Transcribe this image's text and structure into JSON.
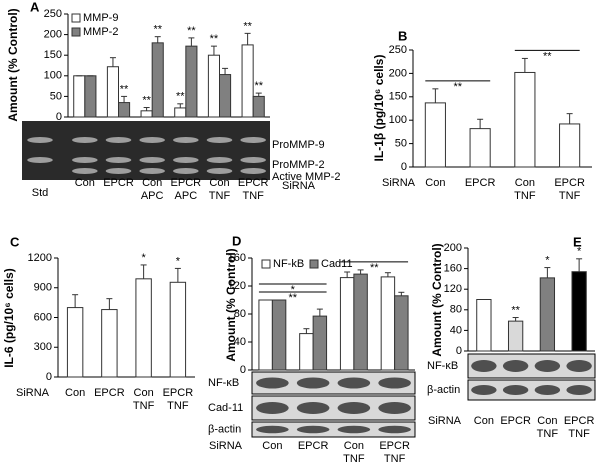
{
  "chart_data": [
    {
      "type": "bar",
      "label": "A",
      "ylabel": "Amount (% Control)",
      "categories": [
        "Con",
        "EPCR",
        "Con APC",
        "EPCR APC",
        "Con TNF",
        "EPCR TNF"
      ],
      "series": [
        {
          "name": "MMP-9",
          "color": "#ffffff",
          "values": [
            100,
            122,
            15,
            22,
            150,
            175
          ],
          "errors": [
            0,
            22,
            8,
            10,
            22,
            28
          ],
          "significance": [
            null,
            null,
            "**",
            "**",
            "**",
            "**"
          ]
        },
        {
          "name": "MMP-2",
          "color": "#808080",
          "values": [
            100,
            35,
            180,
            172,
            103,
            50
          ],
          "errors": [
            0,
            15,
            15,
            20,
            15,
            8
          ],
          "significance": [
            null,
            "**",
            "**",
            "**",
            null,
            "**"
          ]
        }
      ],
      "ylim": [
        0,
        250
      ],
      "yticks": [
        0,
        50,
        100,
        150,
        200,
        250
      ],
      "legend": "upper left",
      "blot_labels": [
        "ProMMP-9",
        "ProMMP-2",
        "Active MMP-2"
      ],
      "marker_label": "Std",
      "row_label": "SiRNA"
    },
    {
      "type": "bar",
      "label": "B",
      "ylabel": "IL-1β  (pg/10⁶ cells)",
      "categories": [
        "Con",
        "EPCR",
        "Con TNF",
        "EPCR TNF"
      ],
      "series": [
        {
          "color": "#ffffff",
          "values": [
            137,
            82,
            202,
            92
          ],
          "errors": [
            30,
            20,
            30,
            22
          ]
        }
      ],
      "comparisons": [
        {
          "pair": [
            0,
            1
          ],
          "text": "**"
        },
        {
          "pair": [
            2,
            3
          ],
          "text": "**"
        }
      ],
      "ylim": [
        0,
        250
      ],
      "yticks": [
        0,
        50,
        100,
        150,
        200,
        250
      ],
      "row_label": "SiRNA"
    },
    {
      "type": "bar",
      "label": "C",
      "ylabel": "IL-6  (pg/10⁶ cells)",
      "categories": [
        "Con",
        "EPCR",
        "Con TNF",
        "EPCR TNF"
      ],
      "series": [
        {
          "color": "#ffffff",
          "values": [
            700,
            680,
            990,
            955
          ],
          "errors": [
            130,
            110,
            140,
            140
          ],
          "significance": [
            null,
            null,
            "*",
            "*"
          ]
        }
      ],
      "ylim": [
        0,
        1200
      ],
      "yticks": [
        0,
        300,
        600,
        900,
        1200
      ],
      "row_label": "SiRNA"
    },
    {
      "type": "bar",
      "label": "D",
      "ylabel": "Amount (% Control)",
      "categories": [
        "Con",
        "EPCR",
        "Con TNF",
        "EPCR TNF"
      ],
      "series": [
        {
          "name": "NF-kB",
          "color": "#ffffff",
          "values": [
            100,
            52,
            132,
            133
          ],
          "errors": [
            0,
            7,
            8,
            6
          ]
        },
        {
          "name": "Cad11",
          "color": "#808080",
          "values": [
            100,
            77,
            137,
            106
          ],
          "errors": [
            0,
            10,
            6,
            5
          ]
        }
      ],
      "comparisons": [
        {
          "pair": [
            0,
            1
          ],
          "text": "**"
        },
        {
          "pair": [
            0,
            1
          ],
          "text": "*"
        },
        {
          "pair": [
            2,
            3
          ],
          "text": "**"
        }
      ],
      "ylim": [
        0,
        160
      ],
      "yticks": [
        0,
        40,
        80,
        120,
        160
      ],
      "legend": "upper left",
      "blot_labels": [
        "NF-κB",
        "Cad-11",
        "β-actin"
      ],
      "row_label": "SiRNA"
    },
    {
      "type": "bar",
      "label": "E",
      "ylabel": "Amount (% Control)",
      "categories": [
        "Con",
        "EPCR",
        "Con TNF",
        "EPCR TNF"
      ],
      "series": [
        {
          "colors": [
            "#ffffff",
            "#d9d9d9",
            "#808080",
            "#000000"
          ],
          "values": [
            100,
            58,
            142,
            154
          ],
          "errors": [
            0,
            7,
            20,
            25
          ],
          "significance": [
            null,
            "**",
            "*",
            "*"
          ]
        }
      ],
      "ylim": [
        0,
        200
      ],
      "yticks": [
        0,
        40,
        80,
        120,
        160,
        200
      ],
      "blot_labels": [
        "NF-κB",
        "β-actin"
      ],
      "row_label": "SiRNA"
    }
  ]
}
